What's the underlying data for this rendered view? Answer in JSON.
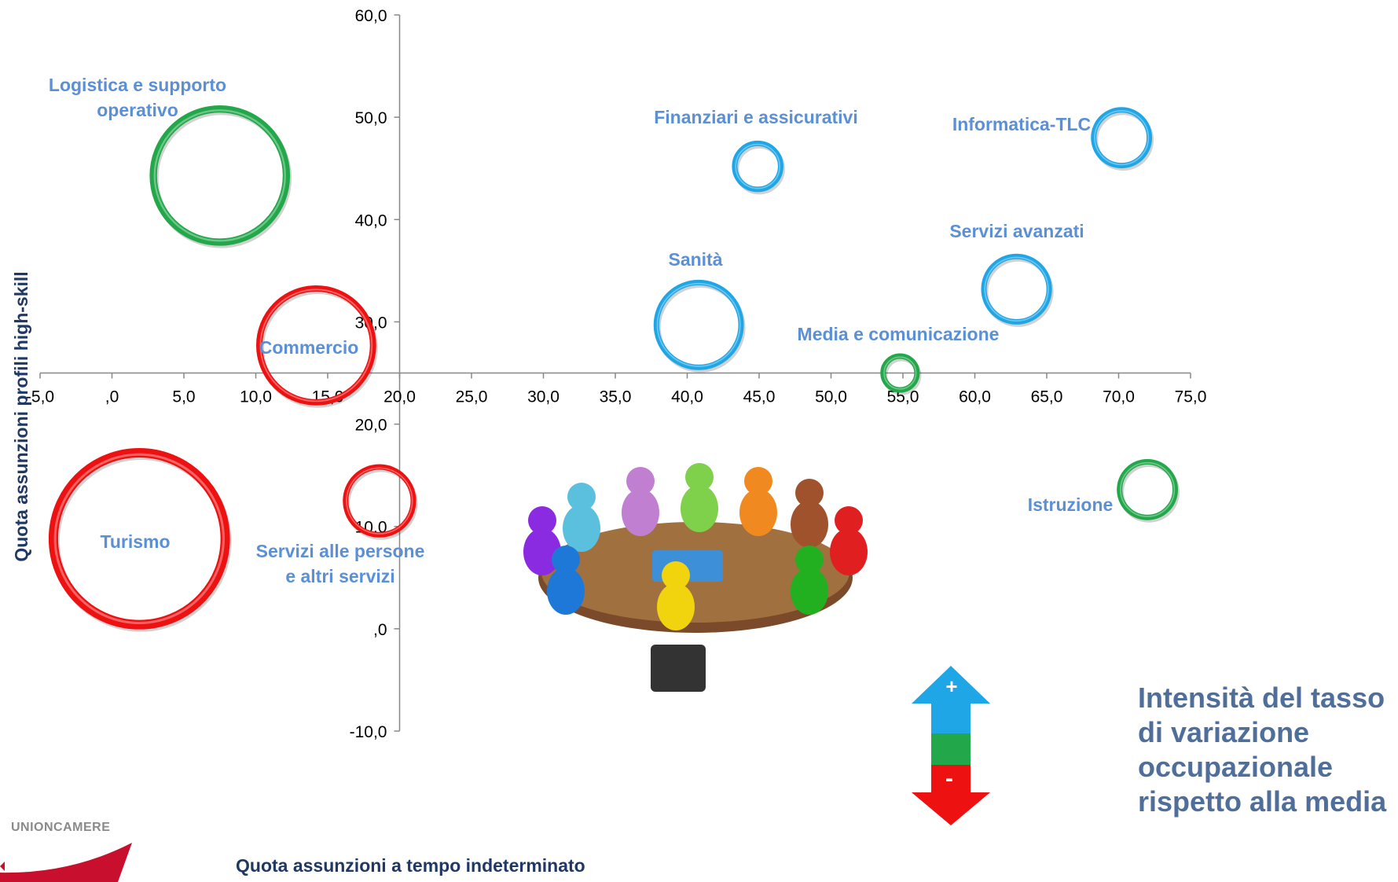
{
  "chart_data": {
    "type": "bubble",
    "xlabel": "Quota assunzioni a tempo indeterminato",
    "ylabel": "Quota assunzioni profili high-skill",
    "xlim": [
      -5,
      75
    ],
    "ylim": [
      -10,
      60
    ],
    "x_ticks": [
      "-5,0",
      ",0",
      "5,0",
      "10,0",
      "15,0",
      "20,0",
      "25,0",
      "30,0",
      "35,0",
      "40,0",
      "45,0",
      "50,0",
      "55,0",
      "60,0",
      "65,0",
      "70,0",
      "75,0"
    ],
    "y_ticks": [
      "-10,0",
      ",0",
      "10,0",
      "20,0",
      "30,0",
      "40,0",
      "50,0",
      "60,0"
    ],
    "x_tick_values": [
      -5,
      0,
      5,
      10,
      15,
      20,
      25,
      30,
      35,
      40,
      45,
      50,
      55,
      60,
      65,
      70,
      75
    ],
    "y_tick_values": [
      -10,
      0,
      10,
      20,
      30,
      40,
      50,
      60
    ],
    "axes_cross": {
      "x": 20,
      "y": 25
    },
    "grid": false,
    "bubbles": [
      {
        "label": "Logistica e supporto operativo",
        "label_lines": [
          "Logistica e supporto",
          "operativo"
        ],
        "x": 7.5,
        "y": 44.3,
        "size": 5.5,
        "color": "#22a84a"
      },
      {
        "label": "Commercio",
        "label_lines": [
          "Commercio"
        ],
        "x": 14.2,
        "y": 27.7,
        "size": 4.7,
        "color": "#ee1111"
      },
      {
        "label": "Turismo",
        "label_lines": [
          "Turismo"
        ],
        "x": 1.9,
        "y": 8.8,
        "size": 7.1,
        "color": "#ee1111"
      },
      {
        "label": "Servizi alle persone e altri servizi",
        "label_lines": [
          "Servizi alle persone",
          "e altri servizi"
        ],
        "x": 18.6,
        "y": 12.5,
        "size": 2.8,
        "color": "#ee1111"
      },
      {
        "label": "Finanziari e assicurativi",
        "label_lines": [
          "Finanziari e assicurativi"
        ],
        "x": 44.9,
        "y": 45.2,
        "size": 1.9,
        "color": "#1ea6e6"
      },
      {
        "label": "Informatica-TLC",
        "label_lines": [
          "Informatica-TLC"
        ],
        "x": 70.2,
        "y": 48.0,
        "size": 2.3,
        "color": "#1ea6e6"
      },
      {
        "label": "Sanità",
        "label_lines": [
          "Sanità"
        ],
        "x": 40.8,
        "y": 29.7,
        "size": 3.5,
        "color": "#1ea6e6"
      },
      {
        "label": "Servizi avanzati",
        "label_lines": [
          "Servizi avanzati"
        ],
        "x": 62.9,
        "y": 33.2,
        "size": 2.7,
        "color": "#1ea6e6"
      },
      {
        "label": "Media e comunicazione",
        "label_lines": [
          "Media e comunicazione"
        ],
        "x": 54.8,
        "y": 25.0,
        "size": 1.4,
        "color": "#22a84a"
      },
      {
        "label": "Istruzione",
        "label_lines": [
          "Istruzione"
        ],
        "x": 72.0,
        "y": 13.6,
        "size": 2.3,
        "color": "#22a84a"
      }
    ]
  },
  "legend": {
    "title_lines": [
      "Intensità del tasso",
      "di variazione",
      "occupazionale",
      "rispetto alla media"
    ],
    "plus": "+",
    "minus": "-",
    "colors": {
      "high": "#1ea6e6",
      "mid": "#22a84a",
      "low": "#ee1111"
    }
  },
  "logo": {
    "text": "UNIONCAMERE",
    "color": "#c8102e"
  }
}
